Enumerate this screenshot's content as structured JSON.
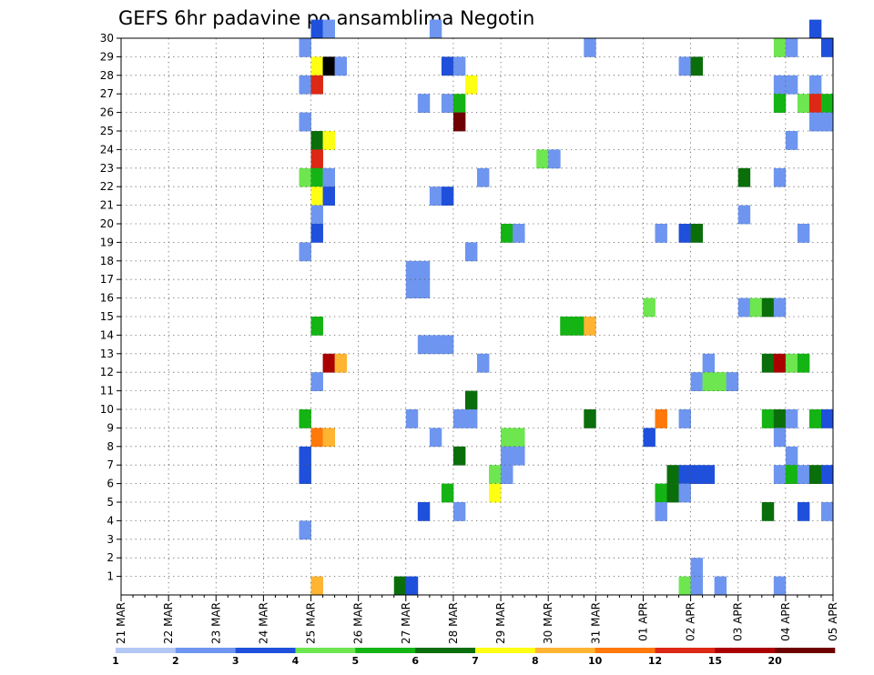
{
  "chart_data": {
    "type": "heatmap",
    "title": "GEFS 6hr padavine po ansamblima Negotin",
    "x_tick_labels": [
      "21 MAR",
      "22 MAR",
      "23 MAR",
      "24 MAR",
      "25 MAR",
      "26 MAR",
      "27 MAR",
      "28 MAR",
      "29 MAR",
      "30 MAR",
      "31 MAR",
      "01 APR",
      "02 APR",
      "03 APR",
      "04 APR",
      "05 APR"
    ],
    "y_tick_labels": [
      "1",
      "2",
      "3",
      "4",
      "5",
      "6",
      "7",
      "8",
      "9",
      "10",
      "11",
      "12",
      "13",
      "14",
      "15",
      "16",
      "17",
      "18",
      "19",
      "20",
      "21",
      "22",
      "23",
      "24",
      "25",
      "26",
      "27",
      "28",
      "29",
      "30"
    ],
    "ylim": [
      0,
      30
    ],
    "x_days": 15,
    "steps_per_day": 4,
    "grid": true,
    "legend": {
      "position": "bottom",
      "labels": [
        "1",
        "2",
        "3",
        "4",
        "5",
        "6",
        "7",
        "8",
        "10",
        "12",
        "15",
        "20"
      ],
      "colors": [
        "#b4c8f5",
        "#6e96f0",
        "#1e50dc",
        "#6ee650",
        "#14b414",
        "#0a6e0a",
        "#ffff14",
        "#ffb432",
        "#ff780a",
        "#dc2814",
        "#aa0000",
        "#6e0000"
      ]
    },
    "cells": [
      [
        30,
        16,
        2
      ],
      [
        30,
        17,
        1
      ],
      [
        30,
        26,
        1
      ],
      [
        30,
        58,
        2
      ],
      [
        29,
        15,
        1
      ],
      [
        29,
        39,
        1
      ],
      [
        29,
        55,
        3
      ],
      [
        29,
        56,
        1
      ],
      [
        29,
        59,
        2
      ],
      [
        28,
        16,
        6
      ],
      [
        28,
        17,
        12
      ],
      [
        28,
        18,
        1
      ],
      [
        28,
        27,
        2
      ],
      [
        28,
        28,
        1
      ],
      [
        28,
        47,
        1
      ],
      [
        28,
        48,
        5
      ],
      [
        27,
        15,
        1
      ],
      [
        27,
        16,
        9
      ],
      [
        27,
        29,
        6
      ],
      [
        27,
        55,
        1
      ],
      [
        27,
        56,
        1
      ],
      [
        27,
        58,
        1
      ],
      [
        26,
        25,
        1
      ],
      [
        26,
        27,
        1
      ],
      [
        26,
        28,
        4
      ],
      [
        26,
        55,
        4
      ],
      [
        26,
        57,
        3
      ],
      [
        26,
        58,
        9
      ],
      [
        26,
        59,
        4
      ],
      [
        25,
        15,
        1
      ],
      [
        25,
        28,
        11
      ],
      [
        25,
        58,
        1
      ],
      [
        25,
        59,
        1
      ],
      [
        24,
        16,
        5
      ],
      [
        24,
        17,
        6
      ],
      [
        24,
        56,
        1
      ],
      [
        23,
        16,
        9
      ],
      [
        23,
        35,
        3
      ],
      [
        23,
        36,
        1
      ],
      [
        22,
        15,
        3
      ],
      [
        22,
        16,
        4
      ],
      [
        22,
        17,
        1
      ],
      [
        22,
        30,
        1
      ],
      [
        22,
        52,
        5
      ],
      [
        22,
        55,
        1
      ],
      [
        21,
        16,
        6
      ],
      [
        21,
        17,
        2
      ],
      [
        21,
        26,
        1
      ],
      [
        21,
        27,
        2
      ],
      [
        20,
        16,
        1
      ],
      [
        20,
        52,
        1
      ],
      [
        19,
        16,
        2
      ],
      [
        19,
        32,
        4
      ],
      [
        19,
        33,
        1
      ],
      [
        19,
        45,
        1
      ],
      [
        19,
        47,
        2
      ],
      [
        19,
        48,
        5
      ],
      [
        19,
        57,
        1
      ],
      [
        18,
        15,
        1
      ],
      [
        18,
        29,
        1
      ],
      [
        17,
        24,
        1
      ],
      [
        17,
        25,
        1
      ],
      [
        16,
        24,
        1
      ],
      [
        16,
        25,
        1
      ],
      [
        15,
        44,
        3
      ],
      [
        15,
        52,
        1
      ],
      [
        15,
        53,
        3
      ],
      [
        15,
        54,
        5
      ],
      [
        15,
        55,
        1
      ],
      [
        14,
        16,
        4
      ],
      [
        14,
        37,
        4
      ],
      [
        14,
        38,
        4
      ],
      [
        14,
        39,
        7
      ],
      [
        13,
        25,
        1
      ],
      [
        13,
        26,
        1
      ],
      [
        13,
        27,
        1
      ],
      [
        12,
        17,
        10
      ],
      [
        12,
        18,
        7
      ],
      [
        12,
        30,
        1
      ],
      [
        12,
        49,
        1
      ],
      [
        12,
        54,
        5
      ],
      [
        12,
        55,
        10
      ],
      [
        12,
        56,
        3
      ],
      [
        12,
        57,
        4
      ],
      [
        11,
        16,
        1
      ],
      [
        11,
        48,
        1
      ],
      [
        11,
        49,
        3
      ],
      [
        11,
        50,
        3
      ],
      [
        11,
        51,
        1
      ],
      [
        10,
        29,
        5
      ],
      [
        9,
        15,
        4
      ],
      [
        9,
        24,
        1
      ],
      [
        9,
        28,
        1
      ],
      [
        9,
        29,
        1
      ],
      [
        9,
        39,
        5
      ],
      [
        9,
        45,
        8
      ],
      [
        9,
        47,
        1
      ],
      [
        9,
        54,
        4
      ],
      [
        9,
        55,
        5
      ],
      [
        9,
        56,
        1
      ],
      [
        9,
        58,
        4
      ],
      [
        9,
        59,
        2
      ],
      [
        8,
        16,
        8
      ],
      [
        8,
        17,
        7
      ],
      [
        8,
        26,
        1
      ],
      [
        8,
        32,
        3
      ],
      [
        8,
        33,
        3
      ],
      [
        8,
        44,
        2
      ],
      [
        8,
        55,
        1
      ],
      [
        7,
        15,
        2
      ],
      [
        7,
        28,
        5
      ],
      [
        7,
        32,
        1
      ],
      [
        7,
        33,
        1
      ],
      [
        7,
        56,
        1
      ],
      [
        6,
        15,
        2
      ],
      [
        6,
        31,
        3
      ],
      [
        6,
        32,
        1
      ],
      [
        6,
        46,
        5
      ],
      [
        6,
        47,
        2
      ],
      [
        6,
        48,
        2
      ],
      [
        6,
        49,
        2
      ],
      [
        6,
        55,
        1
      ],
      [
        6,
        56,
        4
      ],
      [
        6,
        57,
        1
      ],
      [
        6,
        58,
        5
      ],
      [
        6,
        59,
        2
      ],
      [
        5,
        27,
        4
      ],
      [
        5,
        31,
        6
      ],
      [
        5,
        45,
        4
      ],
      [
        5,
        46,
        5
      ],
      [
        5,
        47,
        1
      ],
      [
        4,
        25,
        2
      ],
      [
        4,
        28,
        1
      ],
      [
        4,
        45,
        1
      ],
      [
        4,
        54,
        5
      ],
      [
        4,
        57,
        2
      ],
      [
        4,
        59,
        1
      ],
      [
        3,
        15,
        1
      ],
      [
        1,
        48,
        1
      ],
      [
        0,
        16,
        7
      ],
      [
        0,
        23,
        5
      ],
      [
        0,
        24,
        2
      ],
      [
        0,
        47,
        3
      ],
      [
        0,
        48,
        1
      ],
      [
        0,
        50,
        1
      ],
      [
        0,
        55,
        1
      ]
    ]
  }
}
